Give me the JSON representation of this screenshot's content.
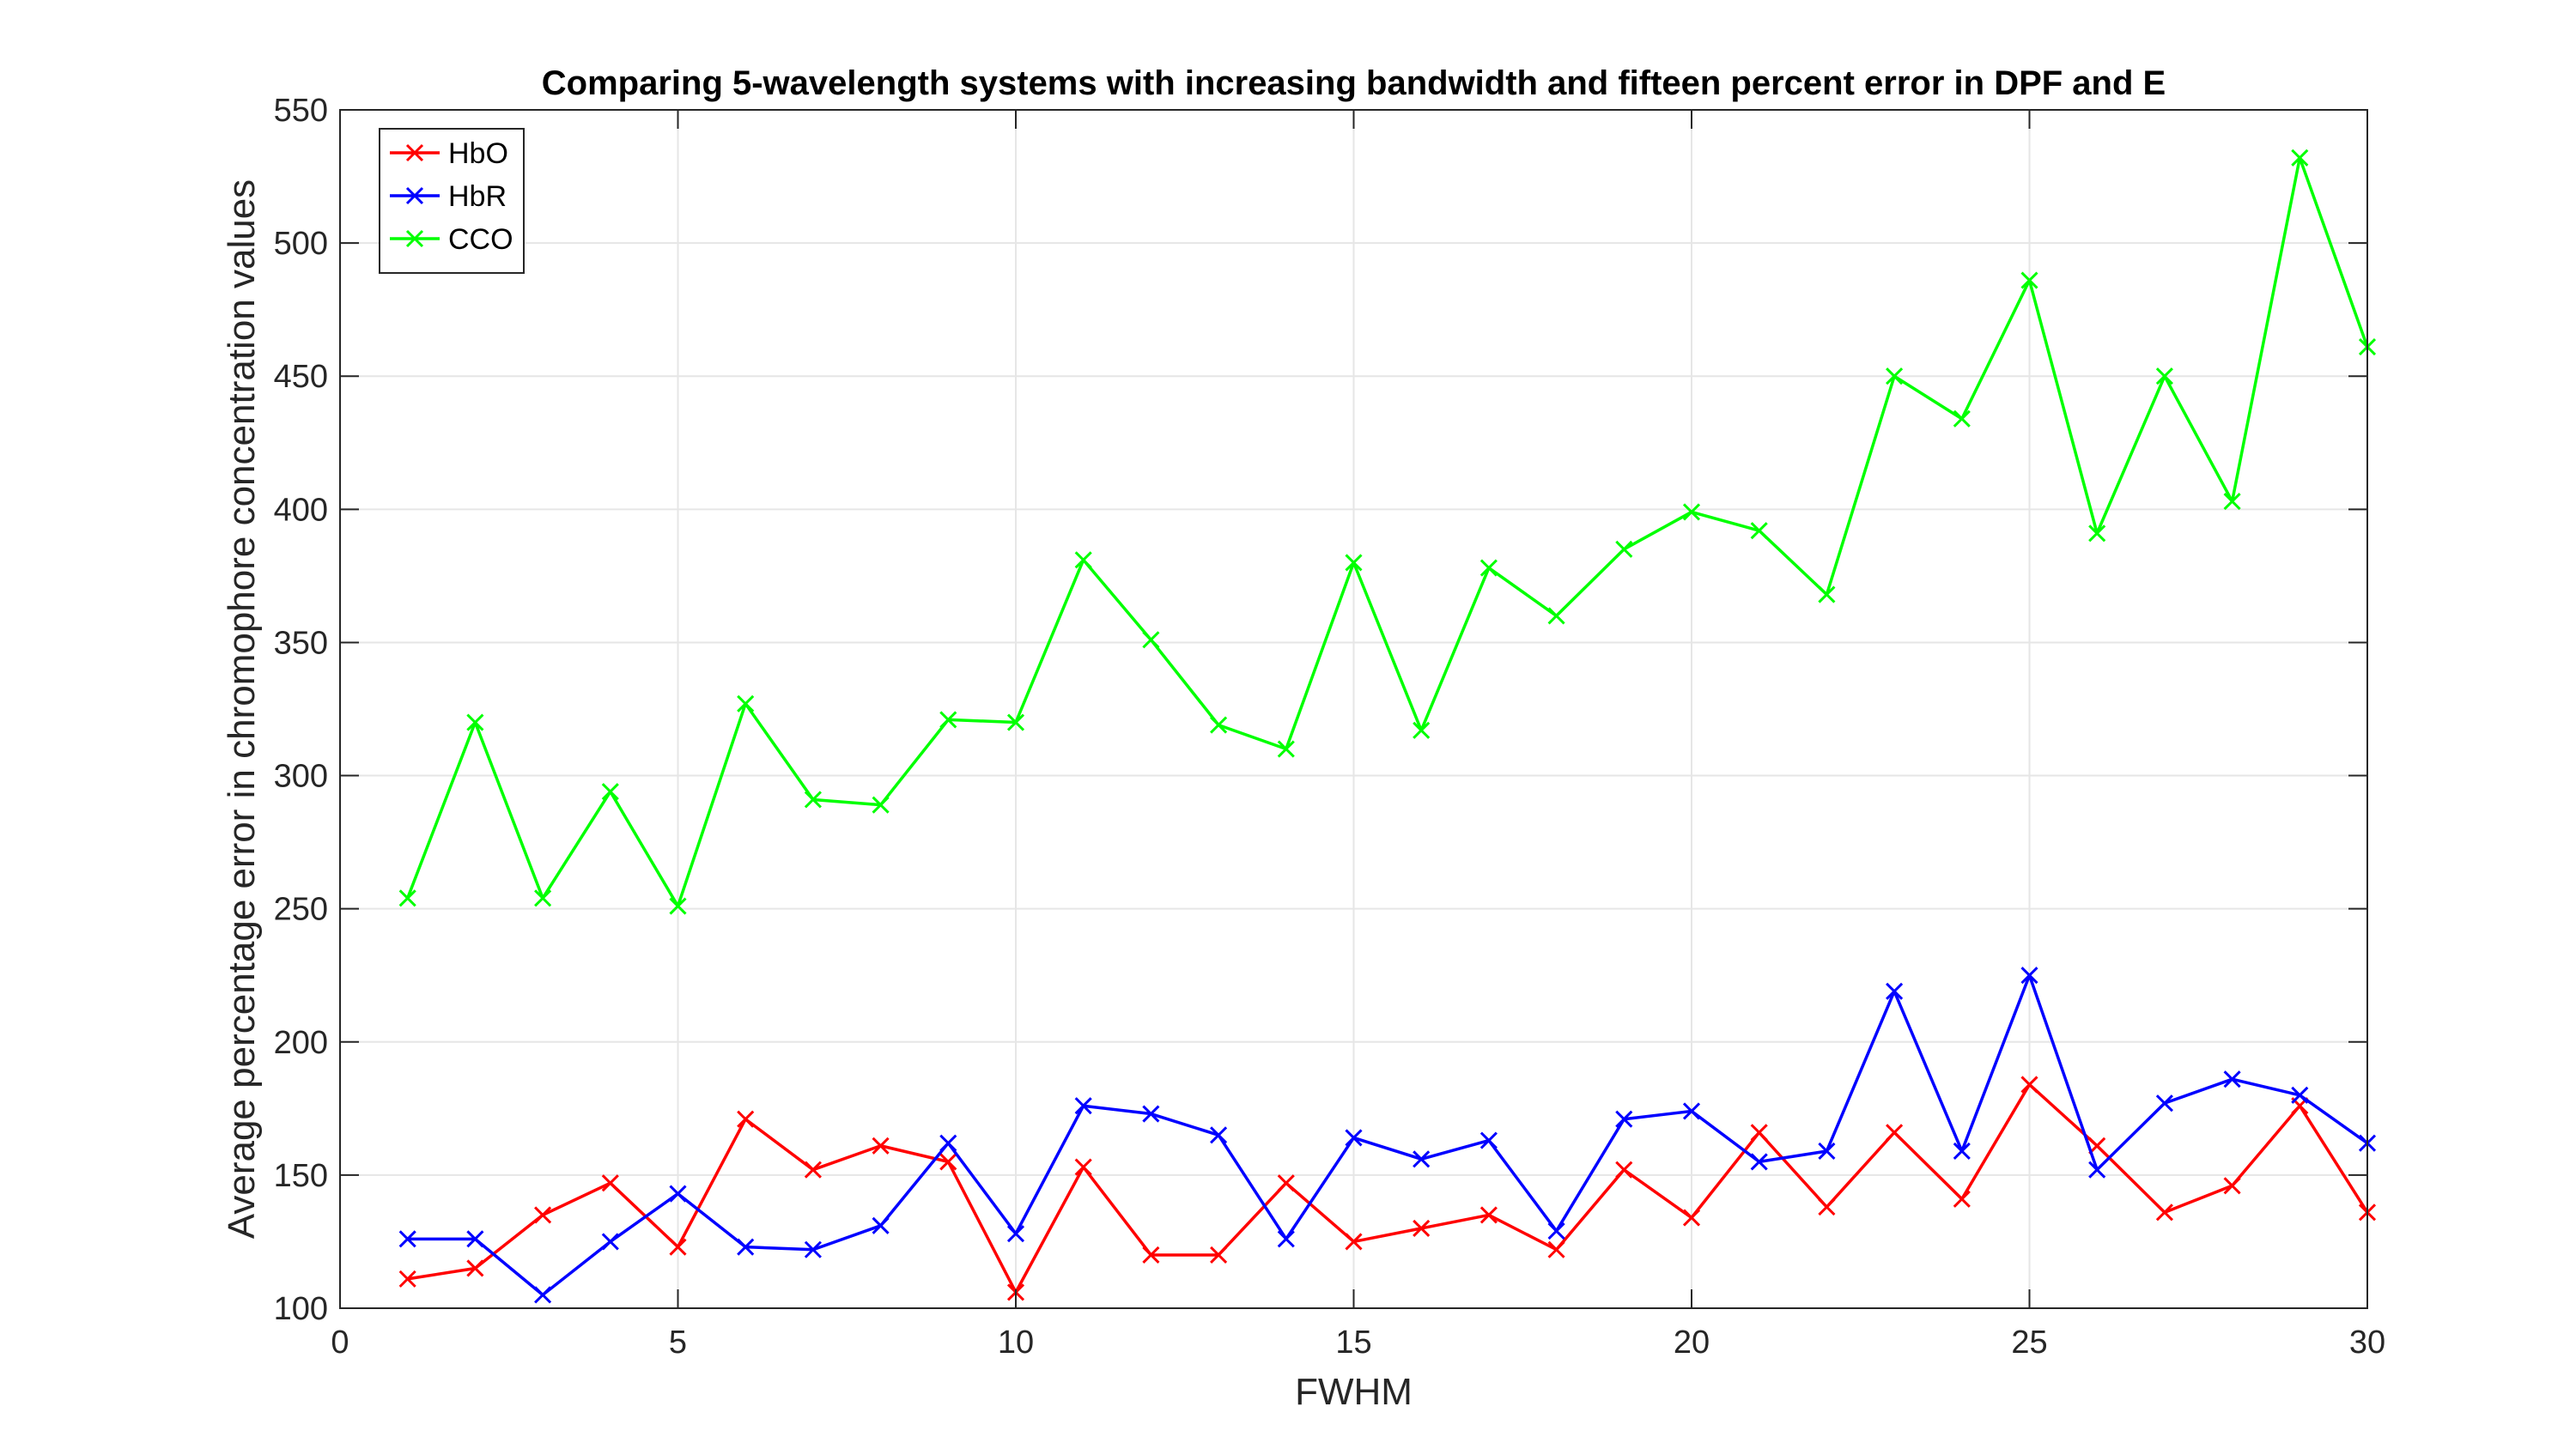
{
  "chart_data": {
    "type": "line",
    "title": "Comparing 5-wavelength systems with increasing bandwidth and fifteen percent error in DPF and E",
    "xlabel": "FWHM",
    "ylabel": "Average percentage error in chromophore concentration values",
    "xlim": [
      0,
      30
    ],
    "ylim": [
      100,
      550
    ],
    "xticks": [
      0,
      5,
      10,
      15,
      20,
      25,
      30
    ],
    "yticks": [
      100,
      150,
      200,
      250,
      300,
      350,
      400,
      450,
      500,
      550
    ],
    "grid": true,
    "legend_position": "top-left",
    "marker": "x",
    "x": [
      1,
      2,
      3,
      4,
      5,
      6,
      7,
      8,
      9,
      10,
      11,
      12,
      13,
      14,
      15,
      16,
      17,
      18,
      19,
      20,
      21,
      22,
      23,
      24,
      25,
      26,
      27,
      28,
      29,
      30
    ],
    "series": [
      {
        "name": "HbO",
        "color": "#ff0000",
        "values": [
          111,
          115,
          135,
          147,
          123,
          171,
          152,
          161,
          155,
          106,
          153,
          120,
          120,
          147,
          125,
          130,
          135,
          122,
          152,
          134,
          166,
          138,
          166,
          141,
          184,
          161,
          136,
          146,
          176,
          136
        ]
      },
      {
        "name": "HbR",
        "color": "#0000ff",
        "values": [
          126,
          126,
          105,
          125,
          143,
          123,
          122,
          131,
          162,
          128,
          176,
          173,
          165,
          126,
          164,
          156,
          163,
          129,
          171,
          174,
          155,
          159,
          219,
          159,
          225,
          152,
          177,
          186,
          180,
          162
        ]
      },
      {
        "name": "CCO",
        "color": "#00ff00",
        "values": [
          254,
          320,
          254,
          294,
          251,
          327,
          291,
          289,
          321,
          320,
          381,
          351,
          319,
          310,
          380,
          317,
          378,
          360,
          385,
          399,
          392,
          368,
          450,
          434,
          486,
          391,
          450,
          403,
          532,
          461
        ]
      }
    ]
  }
}
